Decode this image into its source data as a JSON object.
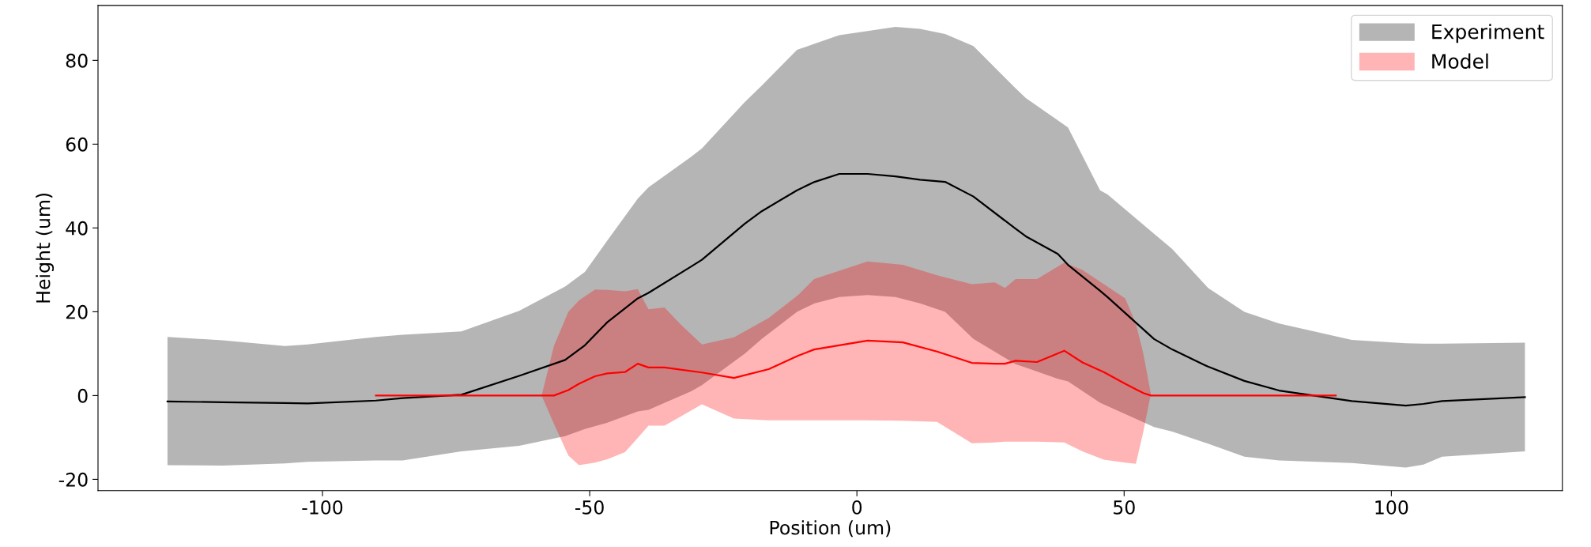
{
  "chart_data": {
    "type": "line",
    "xlabel": "Position (um)",
    "ylabel": "Height (um)",
    "xlim": [
      -142,
      132
    ],
    "ylim": [
      -22.7,
      93.1
    ],
    "xticks": [
      -100,
      -50,
      0,
      50,
      100
    ],
    "yticks": [
      -20,
      0,
      20,
      40,
      60,
      80
    ],
    "legend": "top right",
    "series": [
      {
        "name": "Experiment",
        "color": "#000000",
        "x": [
          -129,
          -118.7,
          -107,
          -102.8,
          -90,
          -85,
          -74,
          -63.2,
          -54.6,
          -50.9,
          -46.7,
          -41,
          -39,
          -31,
          -29,
          -21,
          -17.8,
          -11.2,
          -7.9,
          -3.3,
          2,
          7.2,
          11.8,
          16.5,
          21.8,
          29.7,
          31.6,
          37.6,
          39.5,
          45.5,
          46.9,
          55.6,
          59,
          65.7,
          72.5,
          79,
          92.6,
          102.7,
          106,
          109.5,
          125
        ],
        "values": [
          -1.4,
          -1.6,
          -1.8,
          -1.9,
          -1.2,
          -0.6,
          0.2,
          4.7,
          8.5,
          12,
          17.5,
          23.2,
          24.5,
          30.8,
          32.4,
          41,
          44,
          49,
          51,
          52.9,
          52.9,
          52.3,
          51.5,
          51,
          47.5,
          39.8,
          38,
          33.8,
          31.2,
          25,
          23.5,
          13.5,
          11,
          6.9,
          3.5,
          1.2,
          -1.3,
          -2.4,
          -2,
          -1.3,
          -0.4
        ],
        "lower": [
          -16.6,
          -16.7,
          -16.2,
          -15.8,
          -15.5,
          -15.5,
          -13.3,
          -12,
          -9.7,
          -8,
          -6.5,
          -3.8,
          -3.4,
          1,
          2.5,
          10,
          13.5,
          20,
          22,
          23.5,
          24,
          23.5,
          22,
          20,
          13.5,
          7.5,
          6.7,
          4,
          3.4,
          -1.7,
          -2.5,
          -7.5,
          -8.6,
          -11.5,
          -14.6,
          -15.5,
          -16.1,
          -17.2,
          -16.5,
          -14.6,
          -13.3
        ],
        "upper": [
          14,
          13.2,
          11.8,
          12.2,
          14,
          14.5,
          15.3,
          20.2,
          26,
          29.5,
          37,
          47,
          49.7,
          57,
          59,
          70,
          74,
          82.5,
          84,
          86,
          87,
          88,
          87.5,
          86.3,
          83.4,
          73.3,
          71,
          65.7,
          64,
          49,
          48,
          38.6,
          35,
          25.7,
          20,
          17.2,
          13.3,
          12.5,
          12.4,
          12.4,
          12.6
        ]
      },
      {
        "name": "Model",
        "color": "#ff0000",
        "x": [
          -90,
          -59,
          -56.7,
          -54,
          -52,
          -49,
          -46.7,
          -43.4,
          -41,
          -39,
          -36,
          -33,
          -29,
          -23,
          -16.5,
          -11,
          -8,
          2,
          8.6,
          15,
          21.5,
          25.8,
          27.7,
          29.7,
          33.7,
          38.8,
          42.2,
          46.2,
          50.2,
          52.2,
          53.6,
          55,
          89.6
        ],
        "values": [
          0,
          0,
          0,
          1.3,
          2.8,
          4.6,
          5.3,
          5.6,
          7.6,
          6.7,
          6.7,
          6.2,
          5.5,
          4.2,
          6.3,
          9.5,
          11,
          13.1,
          12.7,
          10.5,
          7.8,
          7.6,
          7.6,
          8.3,
          8,
          10.7,
          7.9,
          5.6,
          2.8,
          1.5,
          0.6,
          0,
          0
        ],
        "upper": [
          null,
          0,
          11.8,
          20,
          22.7,
          25.3,
          25.2,
          24.9,
          25.4,
          20.6,
          21,
          17,
          12.2,
          13.9,
          18.5,
          24,
          27.8,
          32,
          31.2,
          28.7,
          26.6,
          27,
          25.7,
          27.8,
          27.8,
          31.7,
          30,
          26.6,
          23.2,
          17.2,
          10,
          0.4,
          null
        ],
        "lower": [
          null,
          0,
          -6.7,
          -14.3,
          -16.6,
          -16,
          -15.2,
          -13.5,
          -10.1,
          -7.2,
          -7.2,
          -5,
          -2.1,
          -5.5,
          -5.9,
          -5.9,
          -5.9,
          -5.9,
          -6,
          -6.3,
          -11.4,
          -11.2,
          -11,
          -11,
          -11,
          -11.2,
          -13.3,
          -15.3,
          -16,
          -16.3,
          -8.6,
          0.4,
          null
        ]
      }
    ]
  }
}
